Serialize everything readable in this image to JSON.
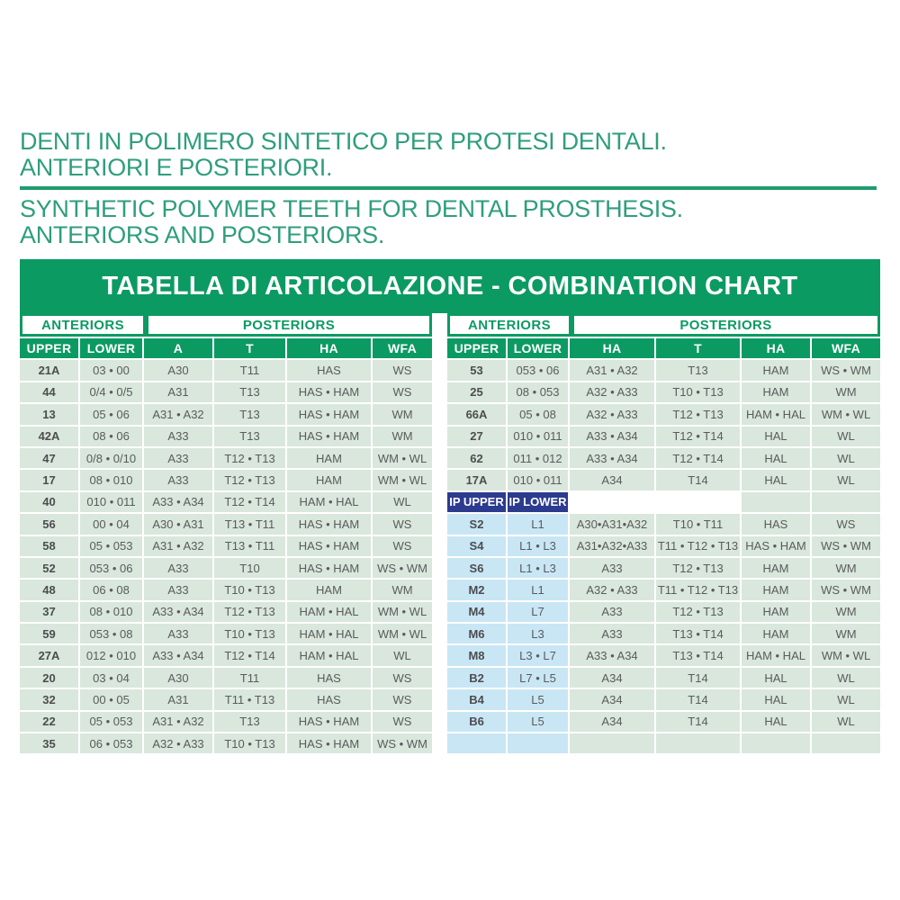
{
  "headings": {
    "it": [
      "DENTI IN POLIMERO SINTETICO PER PROTESI DENTALI.",
      "ANTERIORI E POSTERIORI."
    ],
    "en": [
      "SYNTHETIC POLYMER TEETH FOR DENTAL PROSTHESIS.",
      "ANTERIORS AND POSTERIORS."
    ]
  },
  "colors": {
    "accent_green": "#0c9a63",
    "heading_green": "#2f9e7c",
    "cell_green": "#d9e7dc",
    "cell_blue": "#c9e6f5",
    "ip_navy": "#2c3b8e",
    "cell_text": "#5a5b5d"
  },
  "chart": {
    "title": "TABELLA DI ARTICOLAZIONE - COMBINATION CHART",
    "left_table": {
      "group_headers": [
        "ANTERIORS",
        "POSTERIORS"
      ],
      "columns": [
        "UPPER",
        "LOWER",
        "A",
        "T",
        "HA",
        "WFA"
      ],
      "rows": [
        [
          "21A",
          "03 • 00",
          "A30",
          "T11",
          "HAS",
          "WS"
        ],
        [
          "44",
          "0/4 • 0/5",
          "A31",
          "T13",
          "HAS • HAM",
          "WS"
        ],
        [
          "13",
          "05 • 06",
          "A31 • A32",
          "T13",
          "HAS • HAM",
          "WM"
        ],
        [
          "42A",
          "08 • 06",
          "A33",
          "T13",
          "HAS • HAM",
          "WM"
        ],
        [
          "47",
          "0/8 • 0/10",
          "A33",
          "T12 • T13",
          "HAM",
          "WM • WL"
        ],
        [
          "17",
          "08 • 010",
          "A33",
          "T12 • T13",
          "HAM",
          "WM • WL"
        ],
        [
          "40",
          "010 • 011",
          "A33 • A34",
          "T12 • T14",
          "HAM • HAL",
          "WL"
        ],
        [
          "56",
          "00 • 04",
          "A30 • A31",
          "T13 • T11",
          "HAS • HAM",
          "WS"
        ],
        [
          "58",
          "05 • 053",
          "A31 • A32",
          "T13 • T11",
          "HAS • HAM",
          "WS"
        ],
        [
          "52",
          "053 • 06",
          "A33",
          "T10",
          "HAS • HAM",
          "WS • WM"
        ],
        [
          "48",
          "06 • 08",
          "A33",
          "T10 • T13",
          "HAM",
          "WM"
        ],
        [
          "37",
          "08 • 010",
          "A33 • A34",
          "T12 • T13",
          "HAM • HAL",
          "WM • WL"
        ],
        [
          "59",
          "053 • 08",
          "A33",
          "T10 • T13",
          "HAM • HAL",
          "WM • WL"
        ],
        [
          "27A",
          "012 • 010",
          "A33 • A34",
          "T12 • T14",
          "HAM • HAL",
          "WL"
        ],
        [
          "20",
          "03 • 04",
          "A30",
          "T11",
          "HAS",
          "WS"
        ],
        [
          "32",
          "00 • 05",
          "A31",
          "T11 • T13",
          "HAS",
          "WS"
        ],
        [
          "22",
          "05 • 053",
          "A31 • A32",
          "T13",
          "HAS • HAM",
          "WS"
        ],
        [
          "35",
          "06 • 053",
          "A32 • A33",
          "T10 • T13",
          "HAS • HAM",
          "WS • WM"
        ]
      ]
    },
    "right_table": {
      "group_headers": [
        "ANTERIORS",
        "POSTERIORS"
      ],
      "columns": [
        "UPPER",
        "LOWER",
        "HA",
        "T",
        "HA",
        "WFA"
      ],
      "rows": [
        [
          "53",
          "053 • 06",
          "A31 • A32",
          "T13",
          "HAM",
          "WS • WM"
        ],
        [
          "25",
          "08 • 053",
          "A32 • A33",
          "T10 • T13",
          "HAM",
          "WM"
        ],
        [
          "66A",
          "05 • 08",
          "A32 • A33",
          "T12 • T13",
          "HAM • HAL",
          "WM • WL"
        ],
        [
          "27",
          "010 • 011",
          "A33 • A34",
          "T12 • T14",
          "HAL",
          "WL"
        ],
        [
          "62",
          "011 • 012",
          "A33 • A34",
          "T12 • T14",
          "HAL",
          "WL"
        ],
        [
          "17A",
          "010 • 011",
          "A34",
          "T14",
          "HAL",
          "WL"
        ]
      ],
      "ip_header": {
        "upper": "IP UPPER",
        "lower": "IP LOWER"
      },
      "ip_rows": [
        [
          "S2",
          "L1",
          "A30•A31•A32",
          "T10 • T11",
          "HAS",
          "WS"
        ],
        [
          "S4",
          "L1 • L3",
          "A31•A32•A33",
          "T11 • T12 • T13",
          "HAS • HAM",
          "WS • WM"
        ],
        [
          "S6",
          "L1 • L3",
          "A33",
          "T12 • T13",
          "HAM",
          "WM"
        ],
        [
          "M2",
          "L1",
          "A32 • A33",
          "T11 • T12 • T13",
          "HAM",
          "WS • WM"
        ],
        [
          "M4",
          "L7",
          "A33",
          "T12 • T13",
          "HAM",
          "WM"
        ],
        [
          "M6",
          "L3",
          "A33",
          "T13 • T14",
          "HAM",
          "WM"
        ],
        [
          "M8",
          "L3 • L7",
          "A33 • A34",
          "T13 • T14",
          "HAM • HAL",
          "WM • WL"
        ],
        [
          "B2",
          "L7 • L5",
          "A34",
          "T14",
          "HAL",
          "WL"
        ],
        [
          "B4",
          "L5",
          "A34",
          "T14",
          "HAL",
          "WL"
        ],
        [
          "B6",
          "L5",
          "A34",
          "T14",
          "HAL",
          "WL"
        ]
      ]
    }
  }
}
